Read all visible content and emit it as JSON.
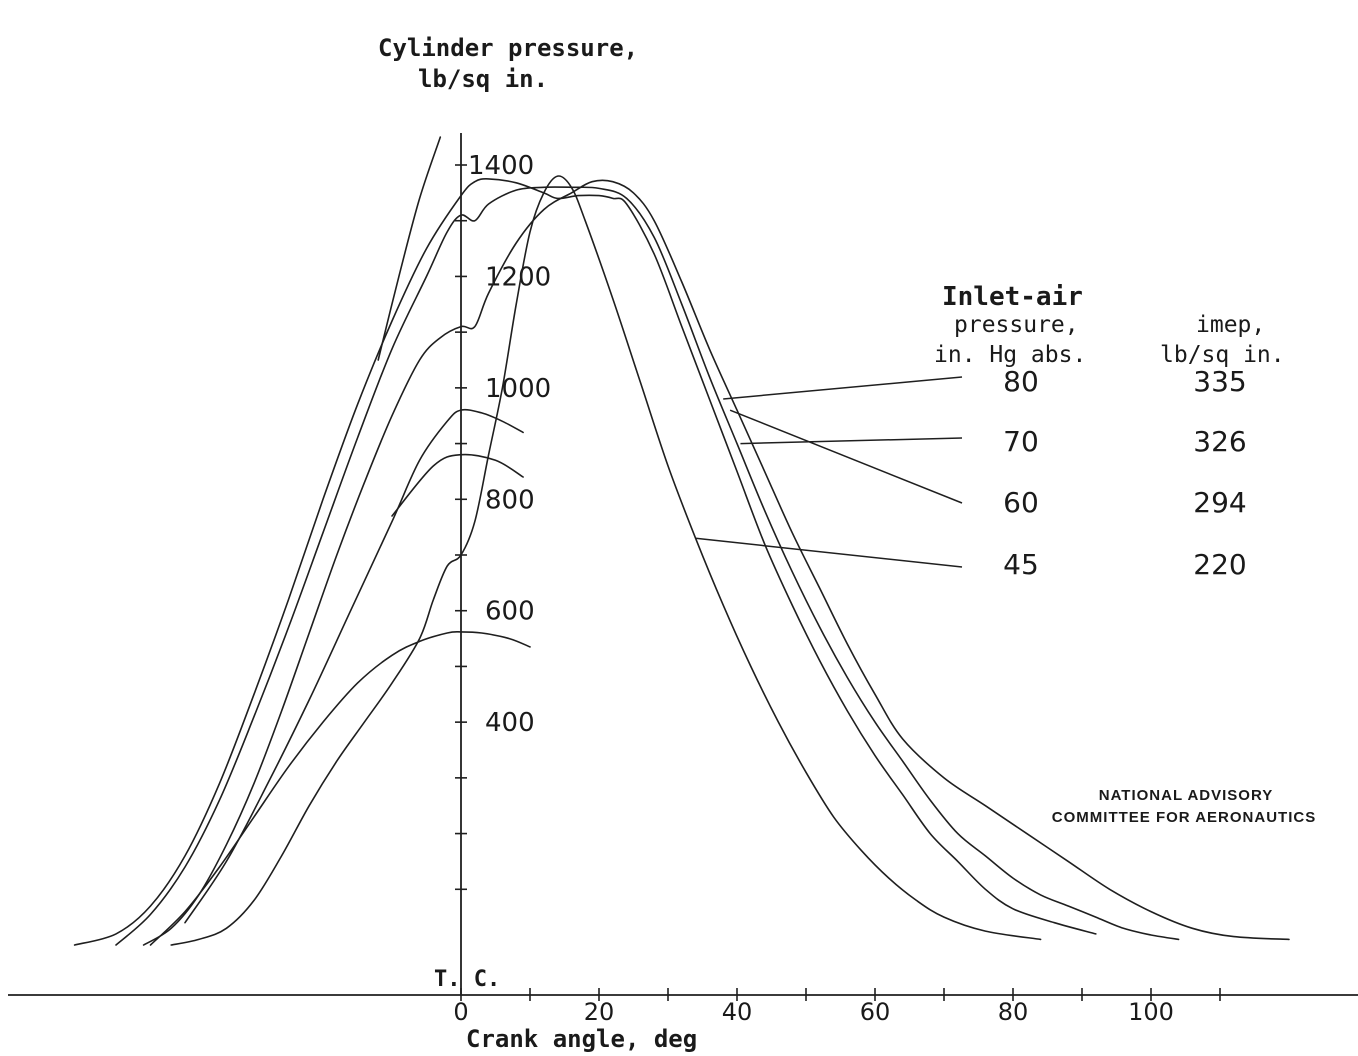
{
  "chart_data": {
    "type": "line",
    "ylabel_line1": "Cylinder pressure,",
    "ylabel_line2": "lb/sq in.",
    "xlabel": "Crank angle, deg",
    "tdc_label": "T. C.",
    "xlim": [
      -57,
      122
    ],
    "ylim": [
      0,
      1400
    ],
    "x_ticks": [
      0,
      20,
      40,
      60,
      80,
      100
    ],
    "y_tick_labels": [
      400,
      600,
      800,
      1000,
      1200,
      1400
    ],
    "legend": {
      "col1_line1": "Inlet-air",
      "col1_line2": "pressure,",
      "col1_line3": "in. Hg abs.",
      "col2_line1": "imep,",
      "col2_line2": "lb/sq in."
    },
    "series": [
      {
        "inlet_air_pressure": "80",
        "imep": "335",
        "points": [
          [
            -56,
            0
          ],
          [
            -50,
            20
          ],
          [
            -45,
            70
          ],
          [
            -40,
            160
          ],
          [
            -35,
            290
          ],
          [
            -30,
            450
          ],
          [
            -25,
            620
          ],
          [
            -20,
            800
          ],
          [
            -15,
            970
          ],
          [
            -10,
            1120
          ],
          [
            -5,
            1250
          ],
          [
            0,
            1345
          ],
          [
            2,
            1370
          ],
          [
            4,
            1375
          ],
          [
            8,
            1368
          ],
          [
            12,
            1350
          ],
          [
            14,
            1340
          ],
          [
            17,
            1345
          ],
          [
            20,
            1345
          ],
          [
            22,
            1340
          ],
          [
            24,
            1330
          ],
          [
            28,
            1240
          ],
          [
            32,
            1110
          ],
          [
            36,
            980
          ],
          [
            40,
            850
          ],
          [
            44,
            720
          ],
          [
            48,
            610
          ],
          [
            52,
            510
          ],
          [
            56,
            420
          ],
          [
            60,
            340
          ],
          [
            64,
            270
          ],
          [
            68,
            200
          ],
          [
            72,
            150
          ],
          [
            76,
            100
          ],
          [
            80,
            65
          ],
          [
            86,
            40
          ],
          [
            92,
            20
          ]
        ]
      },
      {
        "inlet_air_pressure": "70",
        "imep": "326",
        "points": [
          [
            -50,
            0
          ],
          [
            -45,
            55
          ],
          [
            -40,
            140
          ],
          [
            -35,
            260
          ],
          [
            -30,
            410
          ],
          [
            -25,
            570
          ],
          [
            -20,
            740
          ],
          [
            -15,
            910
          ],
          [
            -10,
            1070
          ],
          [
            -5,
            1200
          ],
          [
            -2,
            1280
          ],
          [
            0,
            1310
          ],
          [
            2,
            1300
          ],
          [
            4,
            1330
          ],
          [
            8,
            1355
          ],
          [
            12,
            1360
          ],
          [
            16,
            1360
          ],
          [
            20,
            1358
          ],
          [
            24,
            1340
          ],
          [
            28,
            1270
          ],
          [
            32,
            1150
          ],
          [
            36,
            1020
          ],
          [
            40,
            900
          ],
          [
            44,
            780
          ],
          [
            48,
            670
          ],
          [
            52,
            570
          ],
          [
            56,
            480
          ],
          [
            60,
            400
          ],
          [
            64,
            330
          ],
          [
            68,
            260
          ],
          [
            72,
            200
          ],
          [
            76,
            160
          ],
          [
            80,
            120
          ],
          [
            84,
            90
          ],
          [
            88,
            70
          ],
          [
            92,
            50
          ],
          [
            96,
            30
          ],
          [
            100,
            18
          ],
          [
            104,
            10
          ]
        ]
      },
      {
        "inlet_air_pressure": "60",
        "imep": "294",
        "points": [
          [
            -46,
            0
          ],
          [
            -42,
            30
          ],
          [
            -38,
            90
          ],
          [
            -34,
            180
          ],
          [
            -30,
            290
          ],
          [
            -26,
            420
          ],
          [
            -22,
            560
          ],
          [
            -18,
            700
          ],
          [
            -14,
            830
          ],
          [
            -10,
            950
          ],
          [
            -6,
            1050
          ],
          [
            -3,
            1090
          ],
          [
            0,
            1110
          ],
          [
            2,
            1110
          ],
          [
            4,
            1170
          ],
          [
            8,
            1260
          ],
          [
            12,
            1320
          ],
          [
            16,
            1350
          ],
          [
            19,
            1370
          ],
          [
            22,
            1370
          ],
          [
            25,
            1350
          ],
          [
            28,
            1300
          ],
          [
            32,
            1190
          ],
          [
            36,
            1070
          ],
          [
            40,
            960
          ],
          [
            44,
            850
          ],
          [
            48,
            740
          ],
          [
            52,
            640
          ],
          [
            56,
            540
          ],
          [
            60,
            450
          ],
          [
            64,
            370
          ],
          [
            70,
            300
          ],
          [
            76,
            250
          ],
          [
            82,
            200
          ],
          [
            88,
            150
          ],
          [
            94,
            100
          ],
          [
            100,
            60
          ],
          [
            106,
            30
          ],
          [
            112,
            15
          ],
          [
            120,
            10
          ]
        ]
      },
      {
        "inlet_air_pressure": "45",
        "imep": "220",
        "points": [
          [
            -42,
            0
          ],
          [
            -38,
            10
          ],
          [
            -34,
            30
          ],
          [
            -30,
            80
          ],
          [
            -26,
            160
          ],
          [
            -22,
            250
          ],
          [
            -18,
            330
          ],
          [
            -14,
            400
          ],
          [
            -10,
            470
          ],
          [
            -6,
            550
          ],
          [
            -4,
            620
          ],
          [
            -2,
            680
          ],
          [
            0,
            700
          ],
          [
            2,
            760
          ],
          [
            4,
            880
          ],
          [
            6,
            1000
          ],
          [
            8,
            1150
          ],
          [
            10,
            1280
          ],
          [
            12,
            1350
          ],
          [
            14,
            1380
          ],
          [
            16,
            1360
          ],
          [
            18,
            1300
          ],
          [
            22,
            1160
          ],
          [
            26,
            1010
          ],
          [
            30,
            860
          ],
          [
            34,
            730
          ],
          [
            38,
            610
          ],
          [
            42,
            500
          ],
          [
            46,
            400
          ],
          [
            50,
            310
          ],
          [
            54,
            230
          ],
          [
            58,
            170
          ],
          [
            62,
            120
          ],
          [
            66,
            80
          ],
          [
            70,
            50
          ],
          [
            76,
            25
          ],
          [
            84,
            10
          ]
        ]
      }
    ],
    "tdc_fragments": [
      [
        [
          -3,
          1450
        ],
        [
          -6,
          1340
        ],
        [
          -9,
          1200
        ],
        [
          -12,
          1050
        ]
      ],
      [
        [
          -10,
          770
        ],
        [
          -4,
          860
        ],
        [
          0,
          880
        ],
        [
          5,
          870
        ],
        [
          9,
          840
        ]
      ],
      [
        [
          -45,
          0
        ],
        [
          -40,
          60
        ],
        [
          -35,
          140
        ],
        [
          -30,
          230
        ],
        [
          -25,
          320
        ],
        [
          -20,
          400
        ],
        [
          -15,
          470
        ],
        [
          -10,
          520
        ],
        [
          -6,
          545
        ],
        [
          -2,
          560
        ],
        [
          0,
          562
        ],
        [
          3,
          560
        ],
        [
          7,
          550
        ],
        [
          10,
          535
        ]
      ],
      [
        [
          -40,
          40
        ],
        [
          -34,
          150
        ],
        [
          -28,
          290
        ],
        [
          -22,
          440
        ],
        [
          -16,
          600
        ],
        [
          -10,
          760
        ],
        [
          -6,
          870
        ],
        [
          -2,
          940
        ],
        [
          0,
          960
        ],
        [
          3,
          955
        ],
        [
          6,
          940
        ],
        [
          9,
          920
        ]
      ]
    ]
  },
  "credit_line1": "NATIONAL ADVISORY",
  "credit_line2": "COMMITTEE FOR AERONAUTICS"
}
